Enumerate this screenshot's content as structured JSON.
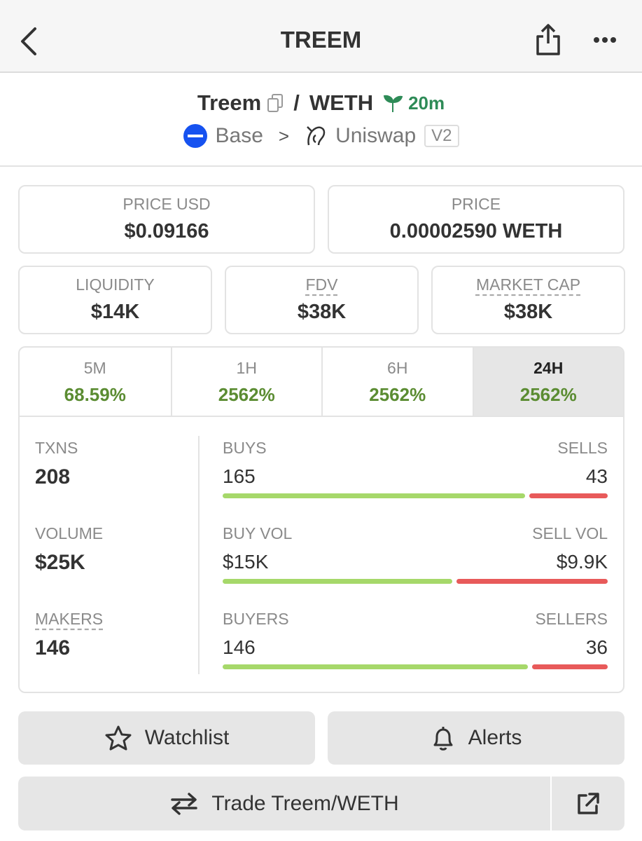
{
  "header": {
    "title": "TREEM"
  },
  "pair": {
    "base": "Treem",
    "separator": "/",
    "quote": "WETH",
    "age": "20m",
    "chain": "Base",
    "arrow": ">",
    "dex": "Uniswap",
    "version": "V2"
  },
  "prices": [
    {
      "label": "PRICE USD",
      "value": "$0.09166"
    },
    {
      "label": "PRICE",
      "value": "0.00002590 WETH"
    }
  ],
  "metrics": [
    {
      "label": "LIQUIDITY",
      "value": "$14K"
    },
    {
      "label": "FDV",
      "value": "$38K"
    },
    {
      "label": "MARKET CAP",
      "value": "$38K"
    }
  ],
  "timeframes": [
    {
      "label": "5M",
      "change": "68.59%"
    },
    {
      "label": "1H",
      "change": "2562%"
    },
    {
      "label": "6H",
      "change": "2562%"
    },
    {
      "label": "24H",
      "change": "2562%",
      "active": true
    }
  ],
  "stats": [
    {
      "label": "TXNS",
      "value": 208,
      "left": {
        "label": "BUYS",
        "value": 165
      },
      "right": {
        "label": "SELLS",
        "value": 43
      }
    },
    {
      "label": "VOLUME",
      "value": "$25K",
      "left": {
        "label": "BUY VOL",
        "value": "$15K"
      },
      "right": {
        "label": "SELL VOL",
        "value": "$9.9K"
      }
    },
    {
      "label": "MAKERS",
      "value": 146,
      "left": {
        "label": "BUYERS",
        "value": 146
      },
      "right": {
        "label": "SELLERS",
        "value": 36
      }
    }
  ],
  "actions": {
    "watchlist": "Watchlist",
    "alerts": "Alerts",
    "trade": "Trade Treem/WETH"
  }
}
